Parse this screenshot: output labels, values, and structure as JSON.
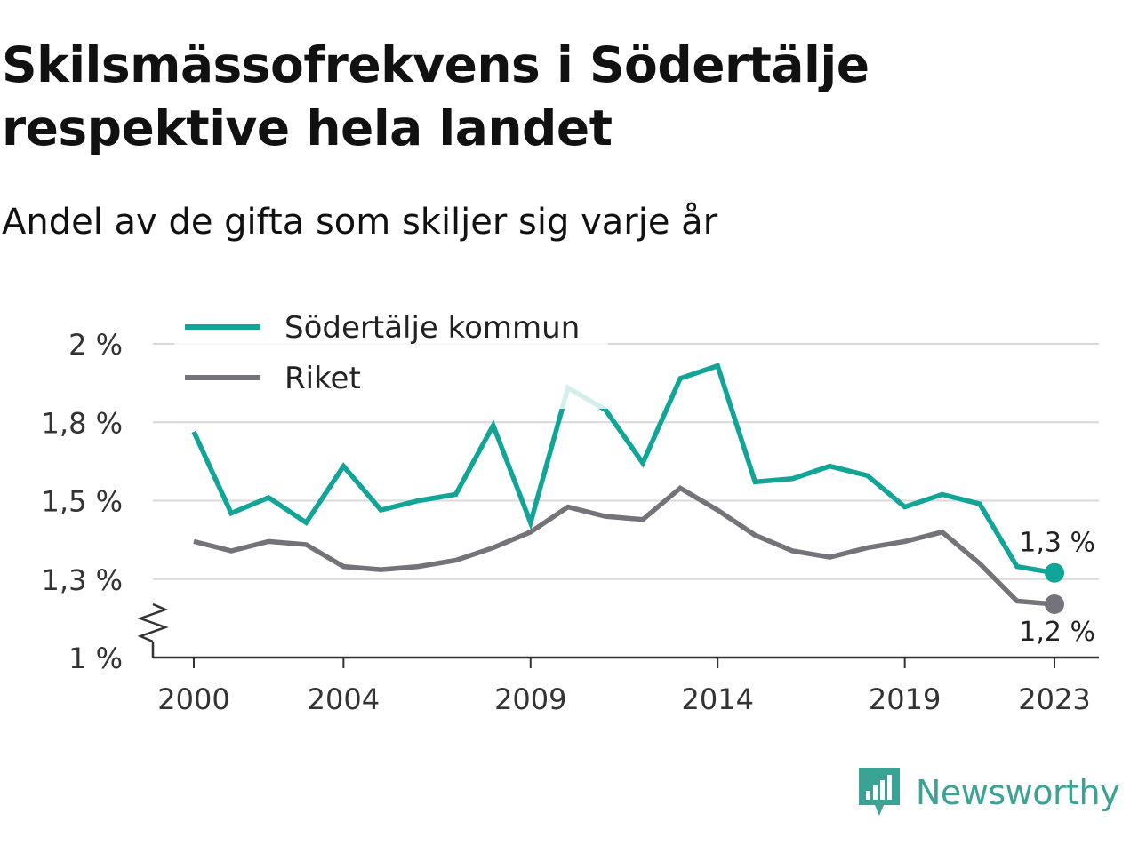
{
  "title_line1": "Skilsmässofrekvens i Södertälje",
  "title_line2": "respektive hela landet",
  "subtitle": "Andel av de gifta som skiljer sig varje år",
  "brand": {
    "name": "Newsworthy",
    "icon": "newsworthy-logo-icon",
    "color": "#3aa394"
  },
  "colors": {
    "sodertalje": "#10a596",
    "riket": "#747379",
    "grid": "#d9d9d9"
  },
  "chart_data": {
    "type": "line",
    "ylim": [
      1.0,
      2.0
    ],
    "y_axis_break": true,
    "grid": true,
    "legend_position": "top-left",
    "x": [
      2000,
      2001,
      2002,
      2003,
      2004,
      2005,
      2006,
      2007,
      2008,
      2009,
      2010,
      2011,
      2012,
      2013,
      2014,
      2015,
      2016,
      2017,
      2018,
      2019,
      2020,
      2021,
      2022,
      2023
    ],
    "x_ticks": [
      2000,
      2004,
      2009,
      2014,
      2019,
      2023
    ],
    "x_tick_labels": [
      "2000",
      "2004",
      "2009",
      "2014",
      "2019",
      "2023"
    ],
    "y_ticks": [
      1.0,
      1.25,
      1.5,
      1.75,
      2.0
    ],
    "y_tick_labels": [
      "1 %",
      "1,3 %",
      "1,5 %",
      "1,8 %",
      "2 %"
    ],
    "series": [
      {
        "name": "Södertälje kommun",
        "color": "#10a596",
        "values": [
          1.72,
          1.46,
          1.51,
          1.43,
          1.61,
          1.47,
          1.5,
          1.52,
          1.74,
          1.43,
          1.86,
          1.79,
          1.62,
          1.89,
          1.93,
          1.56,
          1.57,
          1.61,
          1.58,
          1.48,
          1.52,
          1.49,
          1.29,
          1.27
        ],
        "end_label": "1,3 %"
      },
      {
        "name": "Riket",
        "color": "#747379",
        "values": [
          1.37,
          1.34,
          1.37,
          1.36,
          1.29,
          1.28,
          1.29,
          1.31,
          1.35,
          1.4,
          1.48,
          1.45,
          1.44,
          1.54,
          1.47,
          1.39,
          1.34,
          1.32,
          1.35,
          1.37,
          1.4,
          1.3,
          1.18,
          1.17
        ],
        "end_label": "1,2 %"
      }
    ]
  }
}
